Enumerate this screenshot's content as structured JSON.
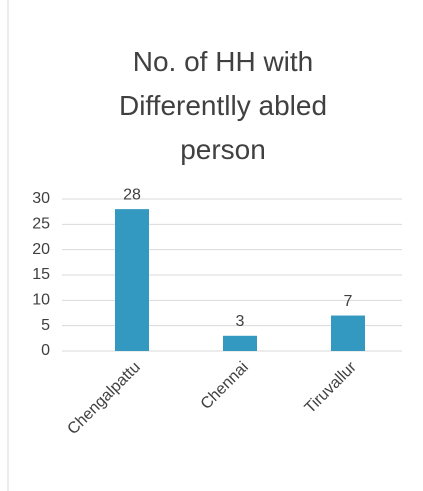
{
  "chart_data": {
    "type": "bar",
    "title": "No. of HH with Differentlly abled person",
    "categories": [
      "Chengalpattu",
      "Chennai",
      "Tiruvallur"
    ],
    "values": [
      28,
      3,
      7
    ],
    "color": "#3399c1",
    "ylim": [
      0,
      30
    ],
    "yticks": [
      0,
      5,
      10,
      15,
      20,
      25,
      30
    ],
    "grid": true
  }
}
